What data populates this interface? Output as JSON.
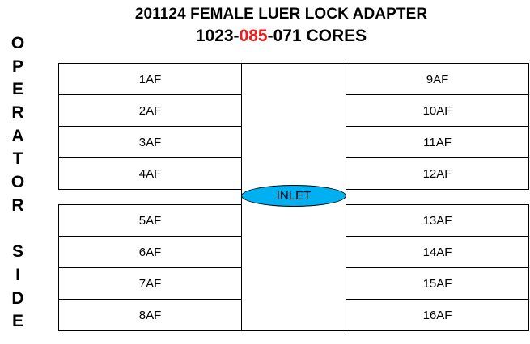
{
  "title": {
    "line1": "201124 FEMALE LUER LOCK ADAPTER",
    "line2_prefix": "1023-",
    "line2_highlight": "085",
    "line2_suffix": "-071 CORES",
    "highlight_color": "#ee1c1c"
  },
  "side_label": {
    "letters": [
      "O",
      "P",
      "E",
      "R",
      "A",
      "T",
      "O",
      "R",
      "",
      "S",
      "I",
      "D",
      "E"
    ]
  },
  "left_cells": [
    "1AF",
    "2AF",
    "3AF",
    "4AF",
    "5AF",
    "6AF",
    "7AF",
    "8AF"
  ],
  "right_cells": [
    "9AF",
    "10AF",
    "11AF",
    "12AF",
    "13AF",
    "14AF",
    "15AF",
    "16AF"
  ],
  "inlet": {
    "label": "INLET",
    "color": "#00b0f0"
  }
}
